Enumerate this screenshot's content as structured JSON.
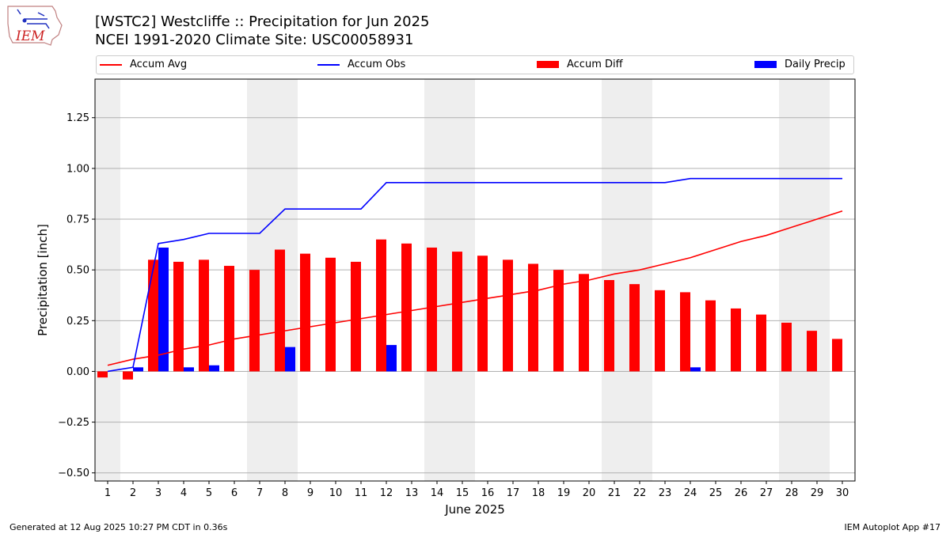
{
  "header": {
    "title_line1": "[WSTC2] Westcliffe :: Precipitation for Jun 2025",
    "title_line2": "NCEI 1991-2020 Climate Site: USC00058931"
  },
  "logo": {
    "text": "IEM"
  },
  "footer": {
    "left": "Generated at 12 Aug 2025 10:27 PM CDT in 0.36s",
    "right": "IEM Autoplot App #17"
  },
  "colors": {
    "avg": "#ff0000",
    "obs": "#0000ff",
    "diff": "#ff0000",
    "daily": "#0000ff",
    "weekend": "#eeeeee"
  },
  "chart_data": {
    "type": "bar",
    "xlabel": "June 2025",
    "ylabel": "Precipitation [inch]",
    "ylim": [
      -0.54,
      1.44
    ],
    "yticks": [
      -0.5,
      -0.25,
      0.0,
      0.25,
      0.5,
      0.75,
      1.0,
      1.25
    ],
    "ytick_labels": [
      "−0.50",
      "−0.25",
      "0.00",
      "0.25",
      "0.50",
      "0.75",
      "1.00",
      "1.25"
    ],
    "grid": true,
    "legend_placement": "top",
    "weekend_days": [
      1,
      7,
      8,
      14,
      15,
      21,
      22,
      28,
      29
    ],
    "days": [
      1,
      2,
      3,
      4,
      5,
      6,
      7,
      8,
      9,
      10,
      11,
      12,
      13,
      14,
      15,
      16,
      17,
      18,
      19,
      20,
      21,
      22,
      23,
      24,
      25,
      26,
      27,
      28,
      29,
      30
    ],
    "series": [
      {
        "name": "Accum Avg",
        "kind": "line",
        "values": [
          0.03,
          0.06,
          0.08,
          0.11,
          0.13,
          0.16,
          0.18,
          0.2,
          0.22,
          0.24,
          0.26,
          0.28,
          0.3,
          0.32,
          0.34,
          0.36,
          0.38,
          0.4,
          0.43,
          0.45,
          0.48,
          0.5,
          0.53,
          0.56,
          0.6,
          0.64,
          0.67,
          0.71,
          0.75,
          0.79
        ]
      },
      {
        "name": "Accum Obs",
        "kind": "line",
        "values": [
          0.0,
          0.02,
          0.63,
          0.65,
          0.68,
          0.68,
          0.68,
          0.8,
          0.8,
          0.8,
          0.8,
          0.93,
          0.93,
          0.93,
          0.93,
          0.93,
          0.93,
          0.93,
          0.93,
          0.93,
          0.93,
          0.93,
          0.93,
          0.95,
          0.95,
          0.95,
          0.95,
          0.95,
          0.95,
          0.95
        ]
      },
      {
        "name": "Accum Diff",
        "kind": "bar",
        "values": [
          -0.03,
          -0.04,
          0.55,
          0.54,
          0.55,
          0.52,
          0.5,
          0.6,
          0.58,
          0.56,
          0.54,
          0.65,
          0.63,
          0.61,
          0.59,
          0.57,
          0.55,
          0.53,
          0.5,
          0.48,
          0.45,
          0.43,
          0.4,
          0.39,
          0.35,
          0.31,
          0.28,
          0.24,
          0.2,
          0.16
        ]
      },
      {
        "name": "Daily Precip",
        "kind": "bar",
        "values": [
          0,
          0.02,
          0.61,
          0.02,
          0.03,
          0,
          0,
          0.12,
          0,
          0,
          0,
          0.13,
          0,
          0,
          0,
          0,
          0,
          0,
          0,
          0,
          0,
          0,
          0,
          0.02,
          0,
          0,
          0,
          0,
          0,
          0
        ]
      }
    ]
  }
}
